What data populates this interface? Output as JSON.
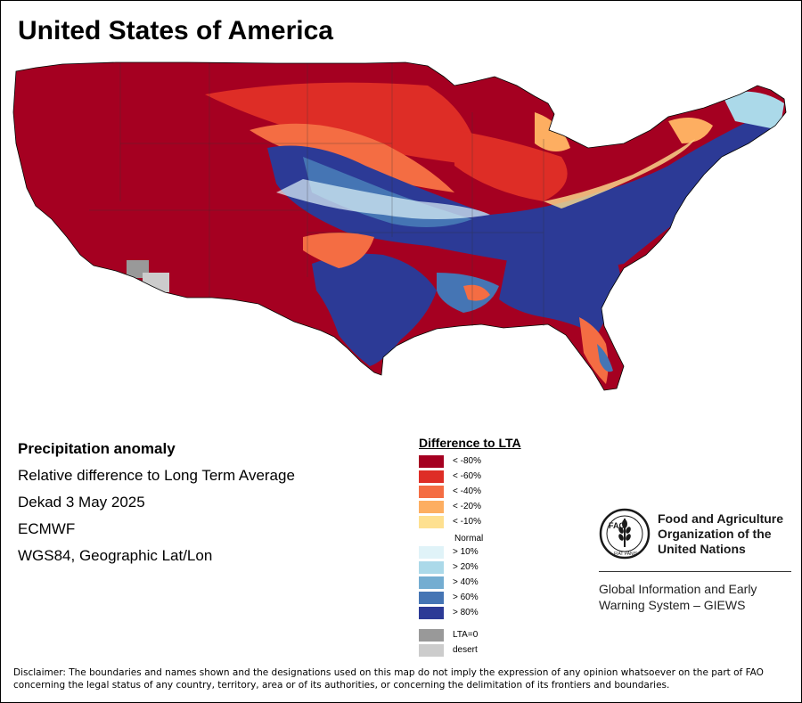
{
  "title": "United States of America",
  "info": {
    "heading": "Precipitation anomaly",
    "subtitle": "Relative difference to Long Term Average",
    "period": "Dekad 3 May 2025",
    "source": "ECMWF",
    "projection": "WGS84, Geographic Lat/Lon"
  },
  "legend": {
    "title": "Difference to LTA",
    "dry": [
      {
        "label": "< -80%",
        "color": "#a50021"
      },
      {
        "label": "< -60%",
        "color": "#de2d26"
      },
      {
        "label": "< -40%",
        "color": "#f46d43"
      },
      {
        "label": "< -20%",
        "color": "#fdae61"
      },
      {
        "label": "< -10%",
        "color": "#fee090"
      }
    ],
    "normal_label": "Normal",
    "wet": [
      {
        "label": "> 10%",
        "color": "#e0f3f8"
      },
      {
        "label": "> 20%",
        "color": "#abd9e9"
      },
      {
        "label": "> 40%",
        "color": "#74add1"
      },
      {
        "label": "> 60%",
        "color": "#4575b4"
      },
      {
        "label": "> 80%",
        "color": "#2c3a96"
      }
    ],
    "other": [
      {
        "label": "LTA=0",
        "color": "#999999"
      },
      {
        "label": "desert",
        "color": "#cccccc"
      }
    ]
  },
  "fao": {
    "logo_text": "FAO",
    "motto": "FIAT PANIS",
    "name_line1": "Food and Agriculture",
    "name_line2": "Organization of the",
    "name_line3": "United Nations",
    "giews_line1": "Global Information and Early",
    "giews_line2": "Warning System – GIEWS"
  },
  "disclaimer": "Disclaimer: The boundaries and names shown and the designations used on this map do not imply the expression of any opinion whatsoever on the part of FAO concerning the legal status of any country, territory, area or of its authorities, or concerning the delimitation of its frontiers and boundaries."
}
